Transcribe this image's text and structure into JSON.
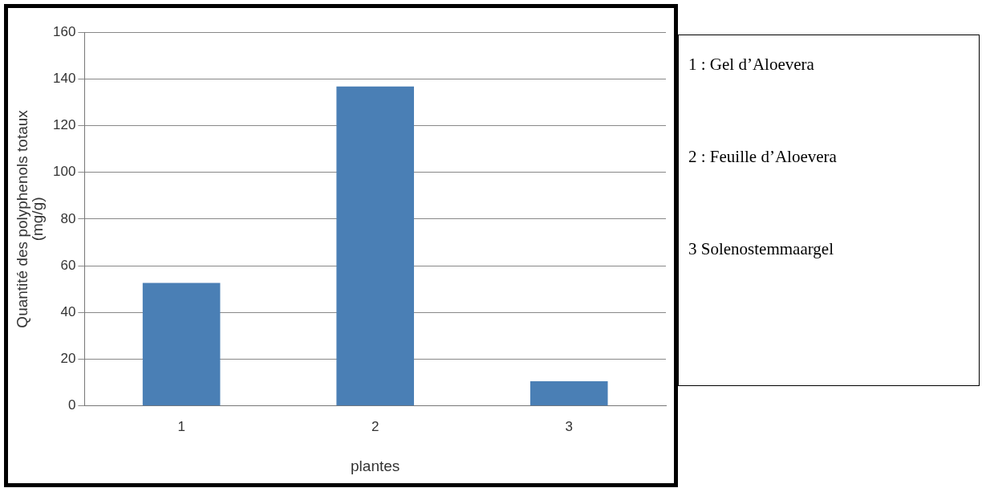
{
  "chart_data": {
    "type": "bar",
    "xlabel": "plantes",
    "ylabel": "Quantité des polyphenols totaux (mg/g)",
    "categories": [
      "1",
      "2",
      "3"
    ],
    "values": [
      52.7,
      136.7,
      10.6
    ],
    "color": "#4a7fb5",
    "ylim": [
      0,
      160
    ],
    "yticks": [
      0,
      20,
      40,
      60,
      80,
      100,
      120,
      140,
      160
    ],
    "grid": "y",
    "annotations": [
      "1 : Gel d’Aloevera",
      "2 : Feuille d’Aloevera",
      "3 Solenostemmaargel"
    ]
  }
}
